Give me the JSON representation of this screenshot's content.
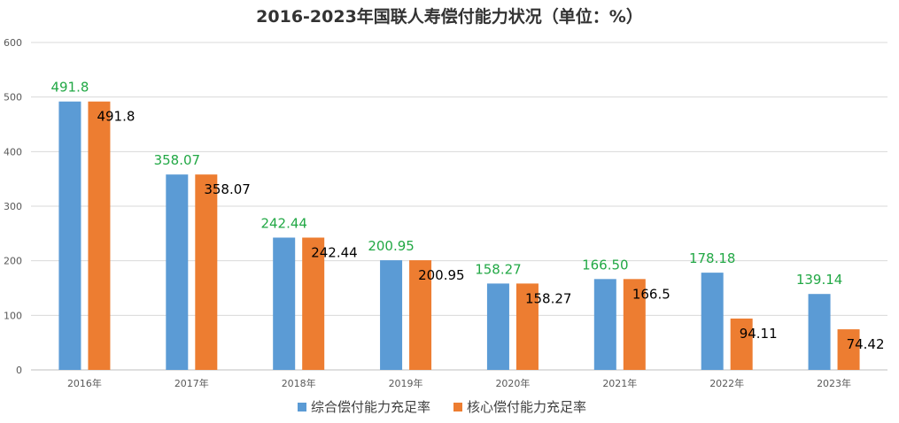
{
  "chart_data": {
    "type": "bar",
    "title": "2016-2023年国联人寿偿付能力状况（单位：%）",
    "categories": [
      "2016年",
      "2017年",
      "2018年",
      "2019年",
      "2020年",
      "2021年",
      "2022年",
      "2023年"
    ],
    "series": [
      {
        "name": "综合偿付能力充足率",
        "values": [
          491.8,
          358.07,
          242.44,
          200.95,
          158.27,
          166.5,
          178.18,
          139.14
        ],
        "labels": [
          "491.8",
          "358.07",
          "242.44",
          "200.95",
          "158.27",
          "166.50",
          "178.18",
          "139.14"
        ],
        "color": "#5b9bd5"
      },
      {
        "name": "核心偿付能力充足率",
        "values": [
          491.8,
          358.07,
          242.44,
          200.95,
          158.27,
          166.5,
          94.11,
          74.42
        ],
        "labels": [
          "491.8",
          "358.07",
          "242.44",
          "200.95",
          "158.27",
          "166.5",
          "94.11",
          "74.42"
        ],
        "color": "#ed7d31"
      }
    ],
    "ylim": [
      0,
      600
    ],
    "yticks": [
      "0",
      "100",
      "200",
      "300",
      "400",
      "500",
      "600"
    ],
    "grid": true,
    "legend": "bottom",
    "label_colors": {
      "series_a": "#22a845",
      "series_b": "#000000"
    }
  }
}
